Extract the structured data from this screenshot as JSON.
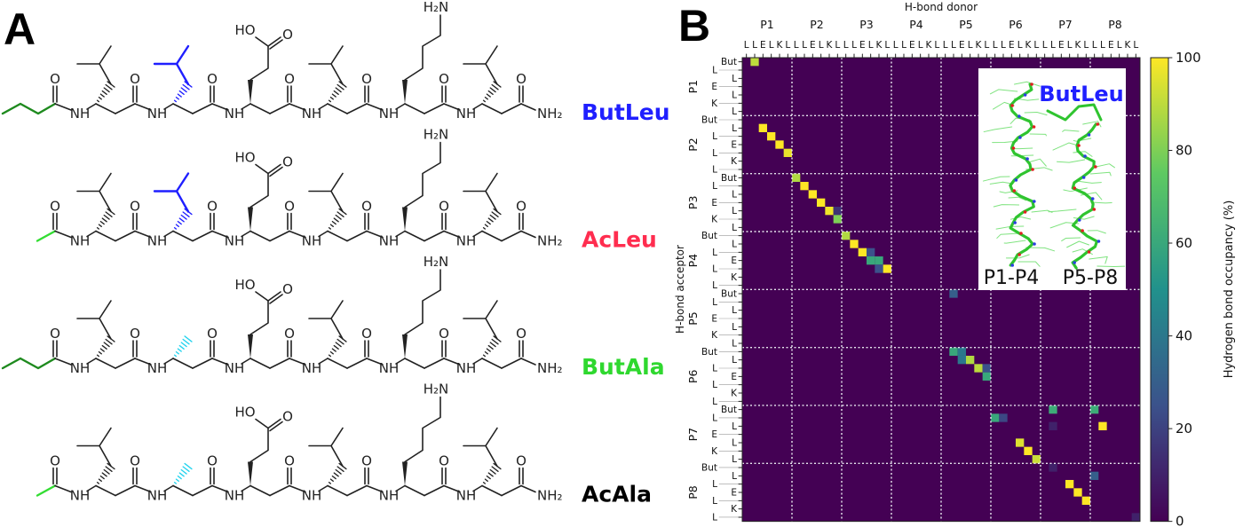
{
  "panel_labels": {
    "a": "A",
    "b": "B"
  },
  "atom_labels": {
    "nh": "NH",
    "o": "O",
    "ho": "HO",
    "h2n": "H₂N",
    "nh2": "NH₂"
  },
  "molecules": [
    {
      "name": "ButLeu",
      "color": "#1f1fff",
      "cap": "butyl",
      "residue2": "Leu",
      "residue2_color": "#1f1fff"
    },
    {
      "name": "AcLeu",
      "color": "#ff2d4f",
      "cap": "acetyl",
      "residue2": "Leu",
      "residue2_color": "#1f1fff"
    },
    {
      "name": "ButAla",
      "color": "#2fd82f",
      "cap": "butyl",
      "residue2": "Ala",
      "residue2_color": "#22d3ee"
    },
    {
      "name": "AcAla",
      "color": "#000000",
      "cap": "acetyl",
      "residue2": "Ala",
      "residue2_color": "#22d3ee"
    }
  ],
  "cap_colors": {
    "butyl": "#1e8a1e",
    "acetyl": "#33dd33"
  },
  "chart_data": {
    "type": "heatmap",
    "title": "",
    "xlabel": "H-bond donor",
    "ylabel": "H-bond acceptor",
    "peptides": [
      "P1",
      "P2",
      "P3",
      "P4",
      "P5",
      "P6",
      "P7",
      "P8"
    ],
    "donor_residues": [
      "L",
      "L",
      "E",
      "L",
      "K",
      "L"
    ],
    "acceptor_residues": [
      "But",
      "L",
      "L",
      "E",
      "L",
      "K",
      "L"
    ],
    "cells_format": "[acceptor_row_index, donor_column_index, occupancy_percent]",
    "cells": [
      [
        0,
        1,
        90
      ],
      [
        8,
        2,
        100
      ],
      [
        9,
        3,
        100
      ],
      [
        10,
        4,
        100
      ],
      [
        11,
        5,
        97
      ],
      [
        14,
        6,
        88
      ],
      [
        15,
        7,
        100
      ],
      [
        16,
        8,
        100
      ],
      [
        17,
        9,
        100
      ],
      [
        18,
        10,
        98
      ],
      [
        18,
        11,
        15
      ],
      [
        19,
        11,
        80
      ],
      [
        21,
        12,
        88
      ],
      [
        22,
        13,
        100
      ],
      [
        23,
        14,
        100
      ],
      [
        23,
        15,
        25
      ],
      [
        24,
        15,
        60
      ],
      [
        24,
        16,
        60
      ],
      [
        25,
        16,
        25
      ],
      [
        25,
        17,
        100
      ],
      [
        28,
        25,
        30
      ],
      [
        35,
        25,
        60
      ],
      [
        35,
        26,
        40
      ],
      [
        36,
        26,
        40
      ],
      [
        36,
        27,
        88
      ],
      [
        37,
        28,
        90
      ],
      [
        37,
        29,
        25
      ],
      [
        38,
        29,
        60
      ],
      [
        42,
        37,
        62
      ],
      [
        42,
        42,
        62
      ],
      [
        43,
        30,
        60
      ],
      [
        43,
        31,
        22
      ],
      [
        44,
        43,
        100
      ],
      [
        44,
        37,
        10
      ],
      [
        46,
        33,
        95
      ],
      [
        47,
        34,
        100
      ],
      [
        48,
        35,
        92
      ],
      [
        49,
        37,
        10
      ],
      [
        50,
        42,
        30
      ],
      [
        51,
        39,
        100
      ],
      [
        52,
        40,
        100
      ],
      [
        53,
        41,
        100
      ],
      [
        55,
        47,
        10
      ]
    ],
    "colorbar": {
      "label": "Hydrogen bond occupancy (%)",
      "range": [
        0,
        100
      ],
      "ticks": [
        "0",
        "20",
        "40",
        "60",
        "80",
        "100"
      ],
      "colormap": "viridis"
    },
    "grid": "dotted white lines between peptides",
    "inset": {
      "label": "ButLeu",
      "label_color": "#1f1fff",
      "left_label": "P1-P4",
      "right_label": "P5-P8"
    }
  }
}
